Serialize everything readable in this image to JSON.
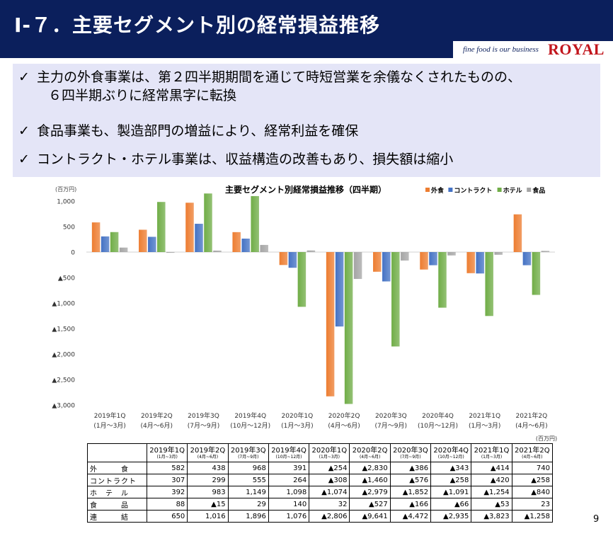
{
  "slide": {
    "title": "Ⅰ-７．主要セグメント別の経常損益推移",
    "logo_tagline": "fine food is our business",
    "logo_name": "ROYAL",
    "page_number": "9"
  },
  "bullets": [
    {
      "mark": "✓",
      "line1": "主力の外食事業は、第２四半期期間を通じて時短営業を余儀なくされたものの、",
      "line2": "６四半期ぶりに経常黒字に転換"
    },
    {
      "mark": "✓",
      "line1": "食品事業も、製造部門の増益により、経常利益を確保"
    },
    {
      "mark": "✓",
      "line1": "コントラクト・ホテル事業は、収益構造の改善もあり、損失額は縮小"
    }
  ],
  "chart_data": {
    "type": "bar",
    "title": "主要セグメント別経常損益推移（四半期）",
    "unit_label": "(百万円)",
    "categories": [
      "2019年1Q",
      "2019年2Q",
      "2019年3Q",
      "2019年4Q",
      "2020年1Q",
      "2020年2Q",
      "2020年3Q",
      "2020年4Q",
      "2021年1Q",
      "2021年2Q"
    ],
    "category_sub": [
      "(1月～3月)",
      "(4月～6月)",
      "(7月～9月)",
      "(10月～12月)",
      "(1月～3月)",
      "(4月～6月)",
      "(7月～9月)",
      "(10月～12月)",
      "(1月～3月)",
      "(4月～6月)"
    ],
    "series": [
      {
        "name": "外食",
        "color": "#ed7d31",
        "values": [
          582,
          438,
          968,
          391,
          -254,
          -2830,
          -386,
          -343,
          -414,
          740
        ]
      },
      {
        "name": "コントラクト",
        "color": "#4472c4",
        "values": [
          307,
          299,
          555,
          264,
          -308,
          -1460,
          -576,
          -258,
          -420,
          -258
        ]
      },
      {
        "name": "ホテル",
        "color": "#70ad47",
        "values": [
          392,
          983,
          1149,
          1098,
          -1074,
          -2979,
          -1852,
          -1091,
          -1254,
          -840
        ]
      },
      {
        "name": "食品",
        "color": "#a5a5a5",
        "values": [
          88,
          -15,
          29,
          140,
          32,
          -527,
          -166,
          -66,
          -53,
          23
        ]
      }
    ],
    "ylim": [
      -3000,
      1000
    ],
    "y_ticks": [
      1000,
      500,
      0,
      -500,
      -1000,
      -1500,
      -2000,
      -2500,
      -3000
    ],
    "y_tick_labels": [
      "1,000",
      "500",
      "0",
      "▲500",
      "▲1,000",
      "▲1,500",
      "▲2,000",
      "▲2,500",
      "▲3,000"
    ],
    "legend_position": "top-right",
    "grid": false
  },
  "table": {
    "unit_note": "(百万円)",
    "headers": [
      {
        "q": "2019年1Q",
        "sub": "(1月~3月)"
      },
      {
        "q": "2019年2Q",
        "sub": "(4月~6月)"
      },
      {
        "q": "2019年3Q",
        "sub": "(7月~9月)"
      },
      {
        "q": "2019年4Q",
        "sub": "(10月~12月)"
      },
      {
        "q": "2020年1Q",
        "sub": "(1月~3月)"
      },
      {
        "q": "2020年2Q",
        "sub": "(4月~6月)"
      },
      {
        "q": "2020年3Q",
        "sub": "(7月~9月)"
      },
      {
        "q": "2020年4Q",
        "sub": "(10月~12月)"
      },
      {
        "q": "2021年1Q",
        "sub": "(1月~3月)"
      },
      {
        "q": "2021年2Q",
        "sub": "(4月~6月)"
      }
    ],
    "rows": [
      {
        "label": "外　　　食",
        "cells": [
          "582",
          "438",
          "968",
          "391",
          "▲254",
          "▲2,830",
          "▲386",
          "▲343",
          "▲414",
          "740"
        ]
      },
      {
        "label": "コントラクト",
        "cells": [
          "307",
          "299",
          "555",
          "264",
          "▲308",
          "▲1,460",
          "▲576",
          "▲258",
          "▲420",
          "▲258"
        ]
      },
      {
        "label": "ホ　テ　ル",
        "cells": [
          "392",
          "983",
          "1,149",
          "1,098",
          "▲1,074",
          "▲2,979",
          "▲1,852",
          "▲1,091",
          "▲1,254",
          "▲840"
        ]
      },
      {
        "label": "食　　　品",
        "cells": [
          "88",
          "▲15",
          "29",
          "140",
          "32",
          "▲527",
          "▲166",
          "▲66",
          "▲53",
          "23"
        ]
      },
      {
        "label": "連　　　結",
        "cells": [
          "650",
          "1,016",
          "1,896",
          "1,076",
          "▲2,806",
          "▲9,641",
          "▲4,472",
          "▲2,935",
          "▲3,823",
          "▲1,258"
        ]
      }
    ]
  }
}
